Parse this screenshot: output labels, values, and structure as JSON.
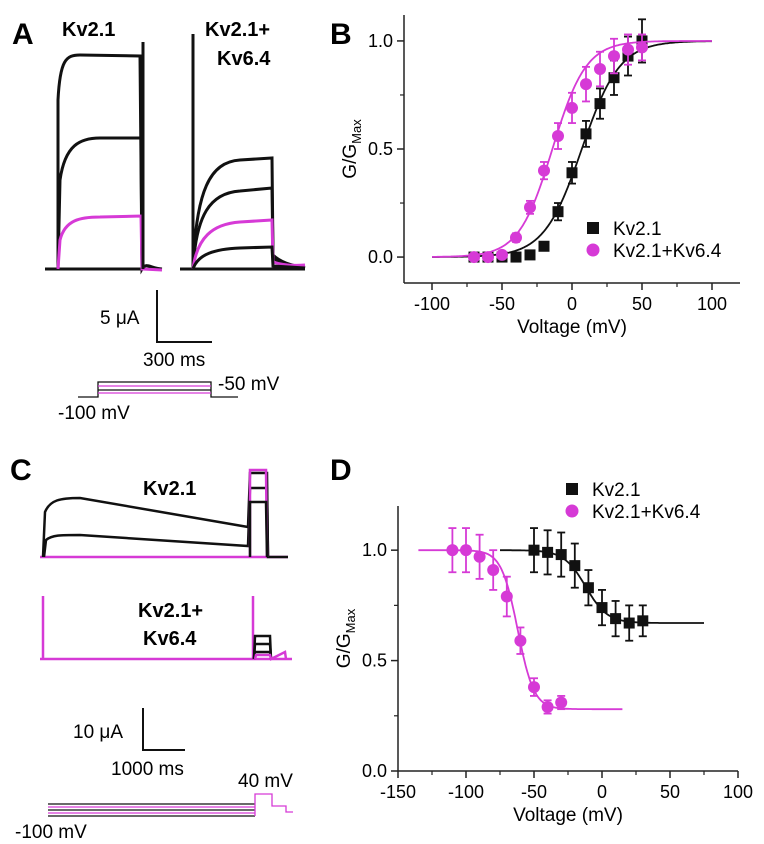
{
  "colors": {
    "kv21": "#111111",
    "kv64": "#d63ad6",
    "axis": "#222222"
  },
  "panels": {
    "A": {
      "letter": "A",
      "label_left": "Kv2.1",
      "label_right_1": "Kv2.1+",
      "label_right_2": "Kv6.4",
      "scale_current": "5 μA",
      "scale_time": "300 ms",
      "protocol_start": "-100 mV",
      "protocol_end": "-50 mV"
    },
    "B": {
      "letter": "B"
    },
    "C": {
      "letter": "C",
      "label_top": "Kv2.1",
      "label_bottom_1": "Kv2.1+",
      "label_bottom_2": "Kv6.4",
      "scale_current": "10 μA",
      "scale_time": "1000 ms",
      "protocol_start": "-100 mV",
      "protocol_step": "40 mV"
    },
    "D": {
      "letter": "D"
    }
  },
  "chart_data": [
    {
      "panel": "B",
      "type": "scatter",
      "xlabel": "Voltage (mV)",
      "ylabel_main": "G/G",
      "ylabel_sub": "Max",
      "xlim": [
        -120,
        120
      ],
      "ylim": [
        -0.12,
        1.12
      ],
      "xticks": [
        -100,
        -50,
        0,
        50,
        100
      ],
      "yticks": [
        0.0,
        0.5,
        1.0
      ],
      "ytick_labels": [
        "0.0",
        "0.5",
        "1.0"
      ],
      "legend_position": "right",
      "series": [
        {
          "name": "Kv2.1",
          "marker": "square",
          "x": [
            -70,
            -60,
            -50,
            -40,
            -30,
            -20,
            -10,
            0,
            10,
            20,
            30,
            40,
            50
          ],
          "y": [
            0.0,
            0.0,
            0.0,
            0.0,
            0.01,
            0.05,
            0.21,
            0.39,
            0.57,
            0.71,
            0.83,
            0.93,
            1.0
          ],
          "err": [
            0,
            0,
            0,
            0,
            0,
            0.02,
            0.04,
            0.05,
            0.06,
            0.07,
            0.08,
            0.09,
            0.1
          ],
          "fit": {
            "v_half": 7,
            "slope": 13.5,
            "x_range": [
              -100,
              100
            ]
          }
        },
        {
          "name": "Kv2.1+Kv6.4",
          "marker": "circle",
          "x": [
            -70,
            -60,
            -50,
            -40,
            -30,
            -20,
            -10,
            0,
            10,
            20,
            30,
            40,
            50
          ],
          "y": [
            0.0,
            0.0,
            0.01,
            0.09,
            0.23,
            0.4,
            0.56,
            0.69,
            0.8,
            0.87,
            0.93,
            0.96,
            0.97
          ],
          "err": [
            0,
            0,
            0,
            0.02,
            0.03,
            0.04,
            0.06,
            0.07,
            0.08,
            0.08,
            0.08,
            0.07,
            0.06
          ],
          "fit": {
            "v_half": -14,
            "slope": 12,
            "x_range": [
              -100,
              100
            ]
          }
        }
      ]
    },
    {
      "panel": "D",
      "type": "scatter",
      "xlabel": "Voltage (mV)",
      "ylabel_main": "G/G",
      "ylabel_sub": "Max",
      "xlim": [
        -150,
        100
      ],
      "ylim": [
        0.0,
        1.2
      ],
      "xticks": [
        -150,
        -100,
        -50,
        0,
        50,
        100
      ],
      "yticks": [
        0.0,
        0.5,
        1.0
      ],
      "ytick_labels": [
        "0.0",
        "0.5",
        "1.0"
      ],
      "legend_position": "top-right",
      "series": [
        {
          "name": "Kv2.1",
          "marker": "square",
          "x": [
            -50,
            -40,
            -30,
            -20,
            -10,
            0,
            10,
            20,
            30
          ],
          "y": [
            1.0,
            0.99,
            0.98,
            0.93,
            0.83,
            0.74,
            0.69,
            0.67,
            0.68
          ],
          "err": [
            0.1,
            0.1,
            0.1,
            0.1,
            0.08,
            0.08,
            0.08,
            0.08,
            0.07
          ],
          "fit": {
            "v_half": -12,
            "slope": 8,
            "bottom": 0.67,
            "top": 1.0,
            "x_range": [
              -75,
              75
            ]
          }
        },
        {
          "name": "Kv2.1+Kv6.4",
          "marker": "circle",
          "x": [
            -110,
            -100,
            -90,
            -80,
            -70,
            -60,
            -50,
            -40,
            -30
          ],
          "y": [
            1.0,
            1.0,
            0.97,
            0.91,
            0.79,
            0.59,
            0.38,
            0.29,
            0.31
          ],
          "err": [
            0.1,
            0.1,
            0.1,
            0.09,
            0.09,
            0.06,
            0.04,
            0.03,
            0.03
          ],
          "fit": {
            "v_half": -62,
            "slope": 6,
            "bottom": 0.28,
            "top": 1.0,
            "x_range": [
              -135,
              15
            ]
          }
        }
      ]
    }
  ]
}
